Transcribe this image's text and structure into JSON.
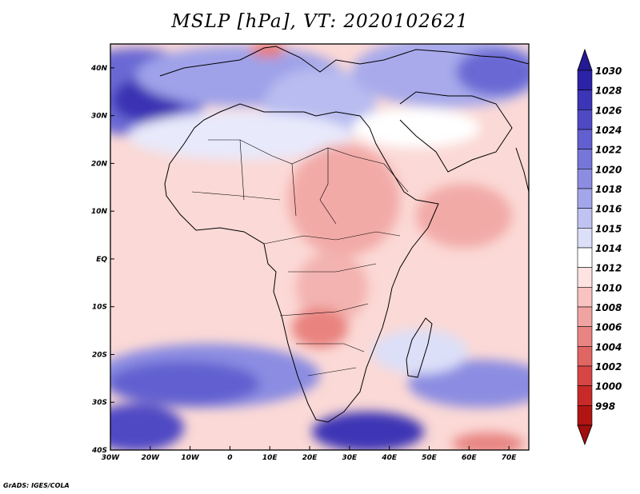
{
  "title": "MSLP [hPa], VT: 2020102621",
  "credit": "GrADS: IGES/COLA",
  "map": {
    "lon_range": [
      -30,
      75
    ],
    "lat_range": [
      -40,
      45
    ],
    "lon_ticks": [
      {
        "value": -30,
        "label": "30W"
      },
      {
        "value": -20,
        "label": "20W"
      },
      {
        "value": -10,
        "label": "10W"
      },
      {
        "value": 0,
        "label": "0"
      },
      {
        "value": 10,
        "label": "10E"
      },
      {
        "value": 20,
        "label": "20E"
      },
      {
        "value": 30,
        "label": "30E"
      },
      {
        "value": 40,
        "label": "40E"
      },
      {
        "value": 50,
        "label": "50E"
      },
      {
        "value": 60,
        "label": "60E"
      },
      {
        "value": 70,
        "label": "70E"
      }
    ],
    "lat_ticks": [
      {
        "value": 40,
        "label": "40N"
      },
      {
        "value": 30,
        "label": "30N"
      },
      {
        "value": 20,
        "label": "20N"
      },
      {
        "value": 10,
        "label": "10N"
      },
      {
        "value": 0,
        "label": "EQ"
      },
      {
        "value": -10,
        "label": "10S"
      },
      {
        "value": -20,
        "label": "20S"
      },
      {
        "value": -30,
        "label": "30S"
      },
      {
        "value": -40,
        "label": "40S"
      }
    ]
  },
  "colorbar": {
    "levels": [
      "1030",
      "1028",
      "1026",
      "1024",
      "1022",
      "1020",
      "1018",
      "1016",
      "1015",
      "1014",
      "1012",
      "1010",
      "1008",
      "1006",
      "1004",
      "1002",
      "1000",
      "998"
    ],
    "colors": [
      "#2b22a5",
      "#3c35b5",
      "#4f4ac4",
      "#6260d0",
      "#7676d9",
      "#8c8de2",
      "#a4a6ea",
      "#c0c3f1",
      "#dcdff8",
      "#ffffff",
      "#fde3e1",
      "#f8c3c0",
      "#f0a4a1",
      "#e88582",
      "#e06663",
      "#d74644",
      "#c72a28",
      "#b01514"
    ],
    "top_arrow_color": "#241a93",
    "bottom_arrow_color": "#a00e0d"
  }
}
